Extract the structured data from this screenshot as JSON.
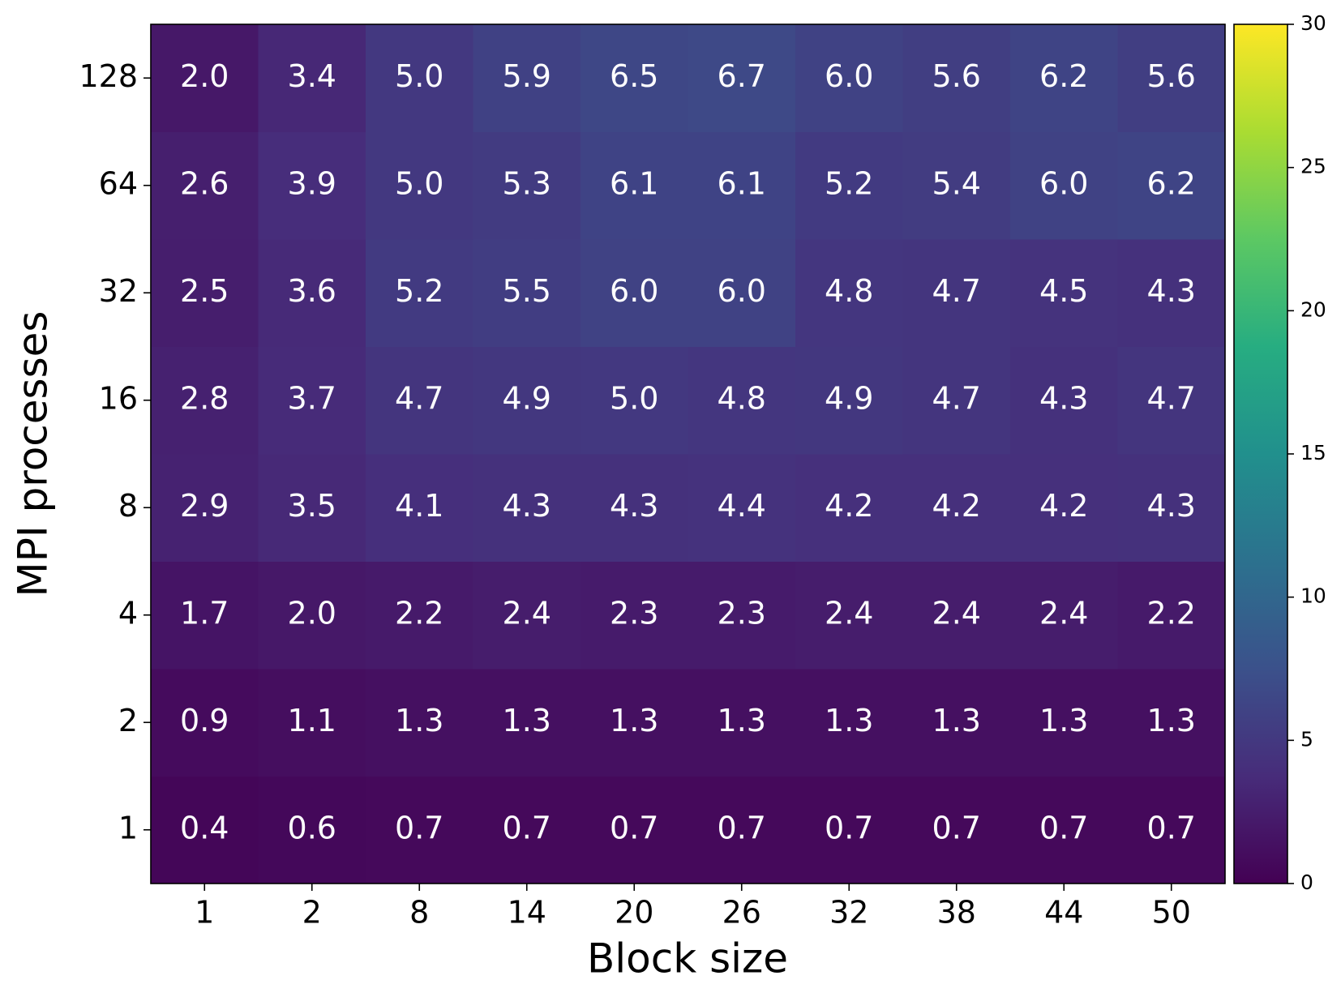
{
  "chart_data": {
    "type": "heatmap",
    "xlabel": "Block size",
    "ylabel": "MPI processes",
    "x_categories": [
      "1",
      "2",
      "8",
      "14",
      "20",
      "26",
      "32",
      "38",
      "44",
      "50"
    ],
    "y_categories": [
      "1",
      "2",
      "4",
      "8",
      "16",
      "32",
      "64",
      "128"
    ],
    "values": [
      [
        0.4,
        0.6,
        0.7,
        0.7,
        0.7,
        0.7,
        0.7,
        0.7,
        0.7,
        0.7
      ],
      [
        0.9,
        1.1,
        1.3,
        1.3,
        1.3,
        1.3,
        1.3,
        1.3,
        1.3,
        1.3
      ],
      [
        1.7,
        2.0,
        2.2,
        2.4,
        2.3,
        2.3,
        2.4,
        2.4,
        2.4,
        2.2
      ],
      [
        2.9,
        3.5,
        4.1,
        4.3,
        4.3,
        4.4,
        4.2,
        4.2,
        4.2,
        4.3
      ],
      [
        2.8,
        3.7,
        4.7,
        4.9,
        5.0,
        4.8,
        4.9,
        4.7,
        4.3,
        4.7
      ],
      [
        2.5,
        3.6,
        5.2,
        5.5,
        6.0,
        6.0,
        4.8,
        4.7,
        4.5,
        4.3
      ],
      [
        2.6,
        3.9,
        5.0,
        5.3,
        6.1,
        6.1,
        5.2,
        5.4,
        6.0,
        6.2
      ],
      [
        2.0,
        3.4,
        5.0,
        5.9,
        6.5,
        6.7,
        6.0,
        5.6,
        6.2,
        5.6
      ]
    ],
    "value_labels": [
      [
        "0.4",
        "0.6",
        "0.7",
        "0.7",
        "0.7",
        "0.7",
        "0.7",
        "0.7",
        "0.7",
        "0.7"
      ],
      [
        "0.9",
        "1.1",
        "1.3",
        "1.3",
        "1.3",
        "1.3",
        "1.3",
        "1.3",
        "1.3",
        "1.3"
      ],
      [
        "1.7",
        "2.0",
        "2.2",
        "2.4",
        "2.3",
        "2.3",
        "2.4",
        "2.4",
        "2.4",
        "2.2"
      ],
      [
        "2.9",
        "3.5",
        "4.1",
        "4.3",
        "4.3",
        "4.4",
        "4.2",
        "4.2",
        "4.2",
        "4.3"
      ],
      [
        "2.8",
        "3.7",
        "4.7",
        "4.9",
        "5.0",
        "4.8",
        "4.9",
        "4.7",
        "4.3",
        "4.7"
      ],
      [
        "2.5",
        "3.6",
        "5.2",
        "5.5",
        "6.0",
        "6.0",
        "4.8",
        "4.7",
        "4.5",
        "4.3"
      ],
      [
        "2.6",
        "3.9",
        "5.0",
        "5.3",
        "6.1",
        "6.1",
        "5.2",
        "5.4",
        "6.0",
        "6.2"
      ],
      [
        "2.0",
        "3.4",
        "5.0",
        "5.9",
        "6.5",
        "6.7",
        "6.0",
        "5.6",
        "6.2",
        "5.6"
      ]
    ],
    "colormap": "viridis",
    "clim": [
      0,
      30
    ],
    "cticks": [
      0,
      5,
      10,
      15,
      20,
      25,
      30
    ]
  }
}
